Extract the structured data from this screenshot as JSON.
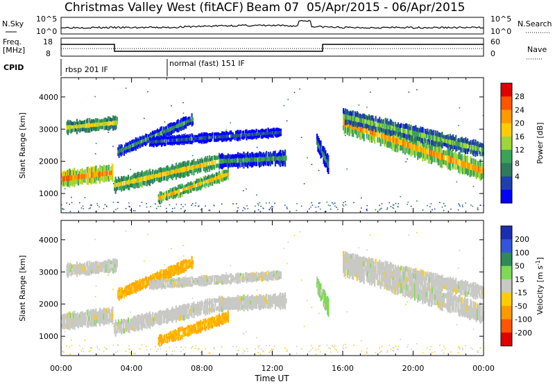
{
  "header": {
    "station": "Christmas Valley West (fitACF)",
    "beam": "Beam 07",
    "date_range": "05/Apr/2015 - 06/Apr/2015"
  },
  "strip": {
    "nsky_label": "N.Sky",
    "nsky_ticks": [
      "10^5",
      "10^0"
    ],
    "nsearch_label": "N.Search",
    "freq_label": "Freq.",
    "freq_unit": "[MHz]",
    "freq_ticks": [
      "18",
      "8"
    ],
    "nave_ticks": [
      "60",
      "0"
    ],
    "nave_label": "Nave",
    "cpid_label": "CPID",
    "cpid_segments": [
      "rbsp 201 IF",
      "normal (fast) 151 IF"
    ]
  },
  "chart_data": [
    {
      "type": "heatmap",
      "name": "power",
      "ylabel": "Slant Range [km]",
      "xlabel": "Time UT",
      "xlim_hours": [
        0,
        24
      ],
      "ylim_km": [
        400,
        4600
      ],
      "x_ticks": [
        "00:00",
        "04:00",
        "08:00",
        "12:00",
        "16:00",
        "20:00",
        "00:00"
      ],
      "y_ticks": [
        "1000",
        "2000",
        "3000",
        "4000"
      ],
      "colorbar": {
        "label": "Power [dB]",
        "ticks": [
          "28",
          "24",
          "20",
          "16",
          "12",
          "8",
          "4"
        ],
        "colors": [
          "#e00000",
          "#ff5500",
          "#ff9900",
          "#ffcc00",
          "#9ed63a",
          "#3aa35a",
          "#2f7a5a",
          "#1e3fb0",
          "#0000ff"
        ]
      }
    },
    {
      "type": "heatmap",
      "name": "velocity",
      "ylabel": "Slant Range [km]",
      "xlabel": "Time UT",
      "xlim_hours": [
        0,
        24
      ],
      "ylim_km": [
        400,
        4600
      ],
      "x_ticks": [
        "00:00",
        "04:00",
        "08:00",
        "12:00",
        "16:00",
        "20:00",
        "00:00"
      ],
      "y_ticks": [
        "1000",
        "2000",
        "3000",
        "4000"
      ],
      "colorbar": {
        "label": "Velocity [m s",
        "label_sup": "-1",
        "label_end": "]",
        "ticks": [
          "200",
          "100",
          "50",
          "15",
          "-15",
          "-50",
          "-100",
          "-200"
        ],
        "colors": [
          "#1a2fb0",
          "#3355dd",
          "#2e8b57",
          "#7ed957",
          "#c8c8c4",
          "#ffcc00",
          "#ff9900",
          "#ff5500",
          "#e00000"
        ]
      }
    }
  ],
  "x_axis_title": "Time UT"
}
